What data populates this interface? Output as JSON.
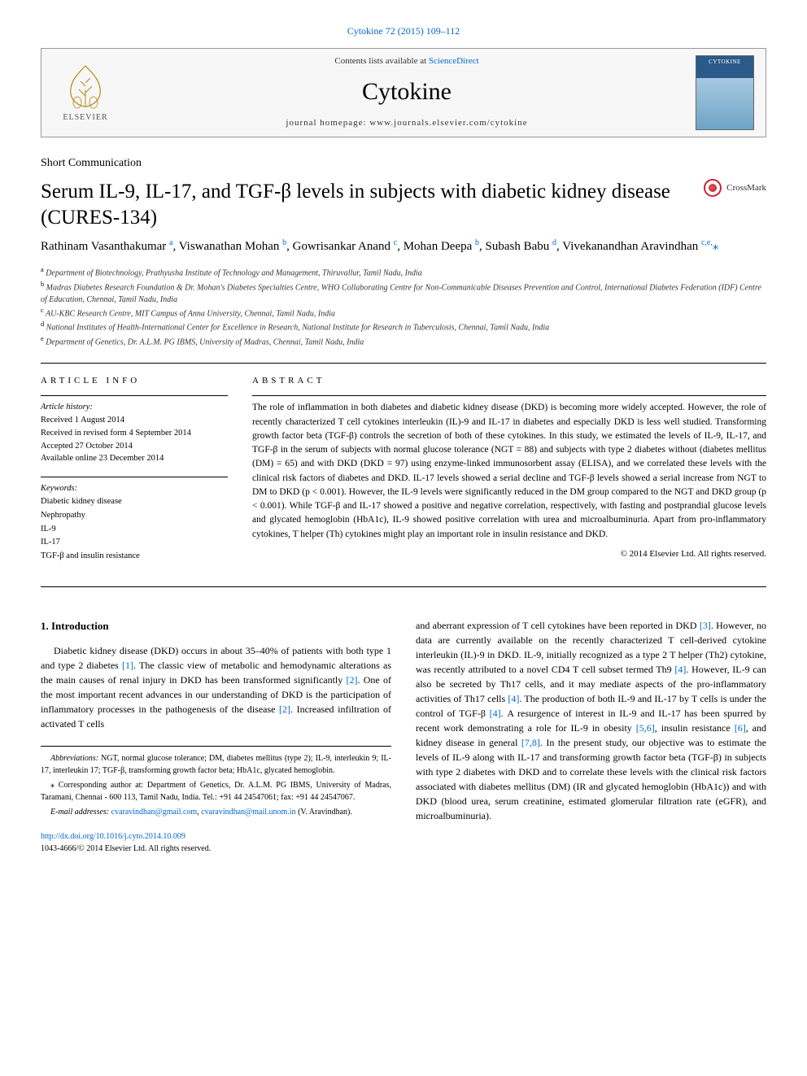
{
  "citation": "Cytokine 72 (2015) 109–112",
  "header": {
    "contents_prefix": "Contents lists available at ",
    "contents_link": "ScienceDirect",
    "journal_name": "Cytokine",
    "homepage_label": "journal homepage: www.journals.elsevier.com/cytokine",
    "elsevier_label": "ELSEVIER"
  },
  "article_type": "Short Communication",
  "title": "Serum IL-9, IL-17, and TGF-β levels in subjects with diabetic kidney disease (CURES-134)",
  "crossmark_label": "CrossMark",
  "authors_html": "Rathinam Vasanthakumar <sup>a</sup>, Viswanathan Mohan <sup>b</sup>, Gowrisankar Anand <sup>c</sup>, Mohan Deepa <sup>b</sup>, Subash Babu <sup>d</sup>, Vivekanandhan Aravindhan <sup>c,e,</sup><span class=\"star-sup\">⁎</span>",
  "affiliations": [
    {
      "sup": "a",
      "text": "Department of Biotechnology, Prathyusha Institute of Technology and Management, Thiruvallur, Tamil Nadu, India"
    },
    {
      "sup": "b",
      "text": "Madras Diabetes Research Foundation & Dr. Mohan's Diabetes Specialties Centre, WHO Collaborating Centre for Non-Communicable Diseases Prevention and Control, International Diabetes Federation (IDF) Centre of Education, Chennai, Tamil Nadu, India"
    },
    {
      "sup": "c",
      "text": "AU-KBC Research Centre, MIT Campus of Anna University, Chennai, Tamil Nadu, India"
    },
    {
      "sup": "d",
      "text": "National Institutes of Health-International Center for Excellence in Research, National Institute for Research in Tuberculosis, Chennai, Tamil Nadu, India"
    },
    {
      "sup": "e",
      "text": "Department of Genetics, Dr. A.L.M. PG IBMS, University of Madras, Chennai, Tamil Nadu, India"
    }
  ],
  "article_info": {
    "heading": "article info",
    "history_label": "Article history:",
    "history": [
      "Received 1 August 2014",
      "Received in revised form 4 September 2014",
      "Accepted 27 October 2014",
      "Available online 23 December 2014"
    ],
    "keywords_label": "Keywords:",
    "keywords": [
      "Diabetic kidney disease",
      "Nephropathy",
      "IL-9",
      "IL-17",
      "TGF-β and insulin resistance"
    ]
  },
  "abstract": {
    "heading": "abstract",
    "text": "The role of inflammation in both diabetes and diabetic kidney disease (DKD) is becoming more widely accepted. However, the role of recently characterized T cell cytokines interleukin (IL)-9 and IL-17 in diabetes and especially DKD is less well studied. Transforming growth factor beta (TGF-β) controls the secretion of both of these cytokines. In this study, we estimated the levels of IL-9, IL-17, and TGF-β in the serum of subjects with normal glucose tolerance (NGT = 88) and subjects with type 2 diabetes without (diabetes mellitus (DM) = 65) and with DKD (DKD = 97) using enzyme-linked immunosorbent assay (ELISA), and we correlated these levels with the clinical risk factors of diabetes and DKD. IL-17 levels showed a serial decline and TGF-β levels showed a serial increase from NGT to DM to DKD (p < 0.001). However, the IL-9 levels were significantly reduced in the DM group compared to the NGT and DKD group (p < 0.001). While TGF-β and IL-17 showed a positive and negative correlation, respectively, with fasting and postprandial glucose levels and glycated hemoglobin (HbA1c), IL-9 showed positive correlation with urea and microalbuminuria. Apart from pro-inflammatory cytokines, T helper (Th) cytokines might play an important role in insulin resistance and DKD.",
    "copyright": "© 2014 Elsevier Ltd. All rights reserved."
  },
  "section1": {
    "heading": "1. Introduction",
    "para_left": "Diabetic kidney disease (DKD) occurs in about 35–40% of patients with both type 1 and type 2 diabetes [1]. The classic view of metabolic and hemodynamic alterations as the main causes of renal injury in DKD has been transformed significantly [2]. One of the most important recent advances in our understanding of DKD is the participation of inflammatory processes in the pathogenesis of the disease [2]. Increased infiltration of activated T cells",
    "para_right": "and aberrant expression of T cell cytokines have been reported in DKD [3]. However, no data are currently available on the recently characterized T cell-derived cytokine interleukin (IL)-9 in DKD. IL-9, initially recognized as a type 2 T helper (Th2) cytokine, was recently attributed to a novel CD4 T cell subset termed Th9 [4]. However, IL-9 can also be secreted by Th17 cells, and it may mediate aspects of the pro-inflammatory activities of Th17 cells [4]. The production of both IL-9 and IL-17 by T cells is under the control of TGF-β [4]. A resurgence of interest in IL-9 and IL-17 has been spurred by recent work demonstrating a role for IL-9 in obesity [5,6], insulin resistance [6], and kidney disease in general [7,8]. In the present study, our objective was to estimate the levels of IL-9 along with IL-17 and transforming growth factor beta (TGF-β) in subjects with type 2 diabetes with DKD and to correlate these levels with the clinical risk factors associated with diabetes mellitus (DM) (IR and glycated hemoglobin (HbA1c)) and with DKD (blood urea, serum creatinine, estimated glomerular filtration rate (eGFR), and microalbuminuria)."
  },
  "footnotes": {
    "abbrev_label": "Abbreviations:",
    "abbrev": " NGT, normal glucose tolerance; DM, diabetes mellitus (type 2); IL-9, interleukin 9; IL-17, interleukin 17; TGF-β, transforming growth factor beta; HbA1c, glycated hemoglobin.",
    "corr_symbol": "⁎",
    "corr": " Corresponding author at: Department of Genetics, Dr. A.L.M. PG IBMS, University of Madras, Taramani, Chennai - 600 113, Tamil Nadu, India. Tel.: +91 44 24547061; fax: +91 44 24547067.",
    "email_label": "E-mail addresses:",
    "email1": "cvaravindhan@gmail.com",
    "email_sep": ", ",
    "email2": "cvaravindhan@mail.unom.in",
    "email_tail": " (V. Aravindhan)."
  },
  "doi": {
    "url": "http://dx.doi.org/10.1016/j.cyto.2014.10.009",
    "issn_line": "1043-4666/© 2014 Elsevier Ltd. All rights reserved."
  },
  "colors": {
    "link": "#0066cc",
    "text": "#000000",
    "rule": "#000000"
  }
}
